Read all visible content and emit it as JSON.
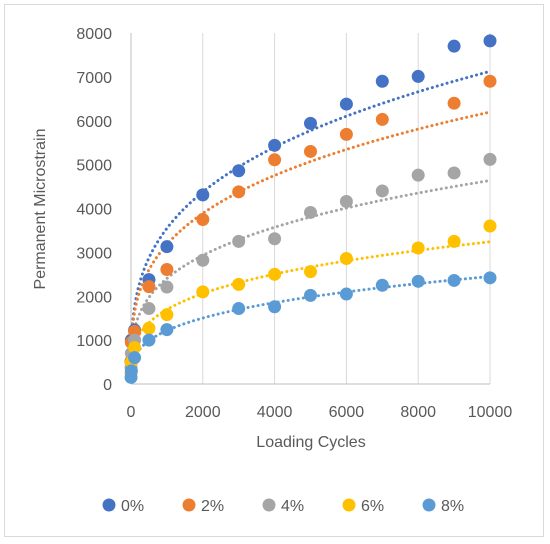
{
  "chart_data": {
    "type": "scatter",
    "xlabel": "Loading Cycles",
    "ylabel": "Permanent Microstrain",
    "xlim": [
      0,
      10000
    ],
    "ylim": [
      0,
      8000
    ],
    "x_ticks": [
      "0",
      "2000",
      "4000",
      "6000",
      "8000",
      "10000"
    ],
    "y_ticks": [
      "0",
      "1000",
      "2000",
      "3000",
      "4000",
      "5000",
      "6000",
      "7000",
      "8000"
    ],
    "grid": "vertical",
    "legend_position": "bottom",
    "trendline": "power, dotted",
    "x": [
      1,
      10,
      100,
      500,
      1000,
      2000,
      3000,
      4000,
      5000,
      6000,
      7000,
      8000,
      9000,
      10000
    ],
    "series": [
      {
        "name": "0%",
        "color": "#4472c4",
        "values": [
          520,
          1000,
          1230,
          2380,
          3130,
          4310,
          4860,
          5440,
          5940,
          6380,
          6900,
          7010,
          7700,
          7820
        ]
      },
      {
        "name": "2%",
        "color": "#ed7d31",
        "values": [
          500,
          950,
          1200,
          2220,
          2610,
          3750,
          4380,
          5110,
          5300,
          5690,
          6030,
          null,
          6400,
          6900
        ]
      },
      {
        "name": "4%",
        "color": "#a5a5a5",
        "values": [
          380,
          700,
          1000,
          1720,
          2210,
          2820,
          3250,
          3310,
          3910,
          4160,
          4400,
          4760,
          4810,
          5120
        ]
      },
      {
        "name": "6%",
        "color": "#ffc000",
        "values": [
          250,
          500,
          830,
          1270,
          1580,
          2100,
          2270,
          2500,
          2560,
          2860,
          null,
          3100,
          3250,
          3600
        ]
      },
      {
        "name": "8%",
        "color": "#5b9bd5",
        "values": [
          150,
          300,
          600,
          1000,
          1240,
          null,
          1720,
          1760,
          2020,
          2050,
          2250,
          2340,
          2360,
          2420
        ]
      }
    ]
  }
}
